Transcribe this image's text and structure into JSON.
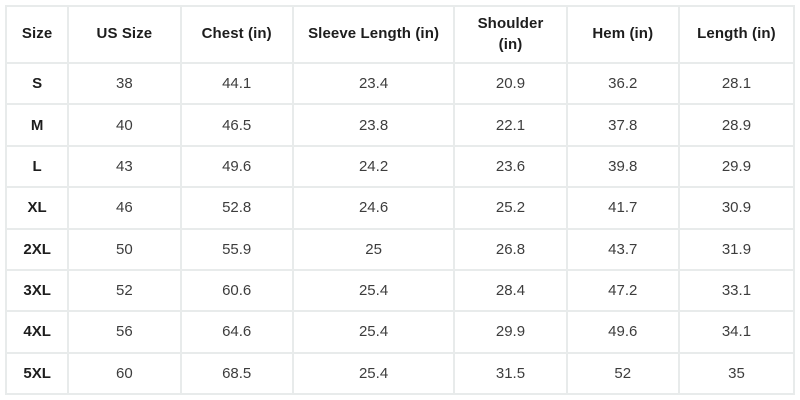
{
  "colors": {
    "background": "#ffffff",
    "border": "#e8ebeb",
    "header_text": "#1d1d1d",
    "value_text": "#3d3d3d"
  },
  "chart_data": {
    "type": "table",
    "columns": [
      "Size",
      "US Size",
      "Chest (in)",
      "Sleeve Length (in)",
      "Shoulder (in)",
      "Hem (in)",
      "Length (in)"
    ],
    "rows": [
      [
        "S",
        "38",
        "44.1",
        "23.4",
        "20.9",
        "36.2",
        "28.1"
      ],
      [
        "M",
        "40",
        "46.5",
        "23.8",
        "22.1",
        "37.8",
        "28.9"
      ],
      [
        "L",
        "43",
        "49.6",
        "24.2",
        "23.6",
        "39.8",
        "29.9"
      ],
      [
        "XL",
        "46",
        "52.8",
        "24.6",
        "25.2",
        "41.7",
        "30.9"
      ],
      [
        "2XL",
        "50",
        "55.9",
        "25",
        "26.8",
        "43.7",
        "31.9"
      ],
      [
        "3XL",
        "52",
        "60.6",
        "25.4",
        "28.4",
        "47.2",
        "33.1"
      ],
      [
        "4XL",
        "56",
        "64.6",
        "25.4",
        "29.9",
        "49.6",
        "34.1"
      ],
      [
        "5XL",
        "60",
        "68.5",
        "25.4",
        "31.5",
        "52",
        "35"
      ]
    ],
    "layout": {
      "grid": true,
      "column_width_pct": [
        7.9,
        14.25,
        14.25,
        20.5,
        14.25,
        14.25,
        14.6
      ]
    }
  }
}
